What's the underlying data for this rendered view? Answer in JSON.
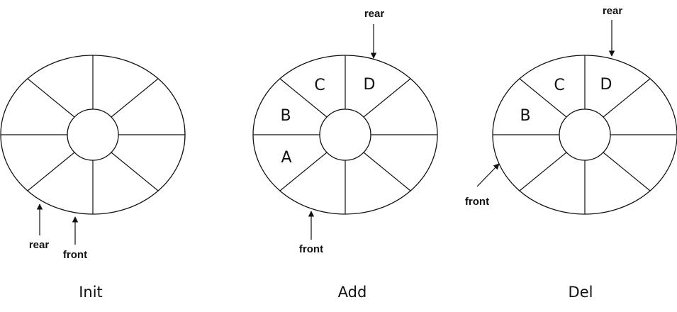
{
  "diagrams": [
    {
      "caption": "Init",
      "cells": [
        "",
        "",
        "",
        "",
        "",
        "",
        "",
        ""
      ],
      "pointers": [
        {
          "label": "rear"
        },
        {
          "label": "front"
        }
      ]
    },
    {
      "caption": "Add",
      "cells": [
        "A",
        "B",
        "C",
        "D",
        "",
        "",
        "",
        ""
      ],
      "pointers": [
        {
          "label": "rear"
        },
        {
          "label": "front"
        }
      ]
    },
    {
      "caption": "Del",
      "cells": [
        "",
        "B",
        "C",
        "D",
        "",
        "",
        "",
        ""
      ],
      "pointers": [
        {
          "label": "rear"
        },
        {
          "label": "front"
        }
      ]
    }
  ]
}
